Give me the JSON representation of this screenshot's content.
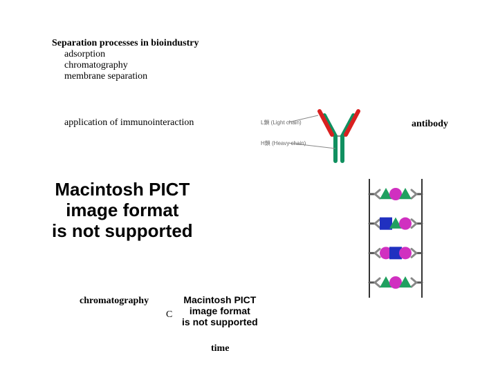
{
  "title": "Separation processes in bioindustry",
  "bullets": [
    "adsorption",
    "chromatography",
    "membrane separation"
  ],
  "sub": "application of immunointeraction",
  "rightLabel": "antibody",
  "pict1": {
    "l1": "Macintosh PICT",
    "l2": "image format",
    "l3": "is not supported",
    "fontSize": 26
  },
  "pict2": {
    "l1": "Macintosh PICT",
    "l2": "image format",
    "l3": "is not supported",
    "fontSize": 14
  },
  "bottom": {
    "label": "chromatography",
    "axisY": "C",
    "axisX": "time"
  },
  "antibodyDiagram": {
    "chainLight": {
      "label": "L鎖 (Light chain)",
      "fontSize": 8,
      "color": "#666"
    },
    "chainHeavy": {
      "label": "H鎖 (Heavy chain)",
      "fontSize": 8,
      "color": "#666"
    },
    "colors": {
      "fab": "#d92020",
      "fc": "#109060",
      "hinge": "#888"
    }
  },
  "column": {
    "borderColor": "#333",
    "bg": "#fff",
    "shapes": {
      "triangle": "#20a060",
      "circle": "#d030c0",
      "square": "#2030c0"
    },
    "mini": {
      "fab": "#888",
      "fc": "#555"
    },
    "rows": [
      [
        "tri",
        "circ",
        "tri"
      ],
      [
        "sq",
        "tri",
        "circ"
      ],
      [
        "circ",
        "sq",
        "circ"
      ],
      [
        "tri",
        "circ",
        "tri"
      ]
    ]
  }
}
